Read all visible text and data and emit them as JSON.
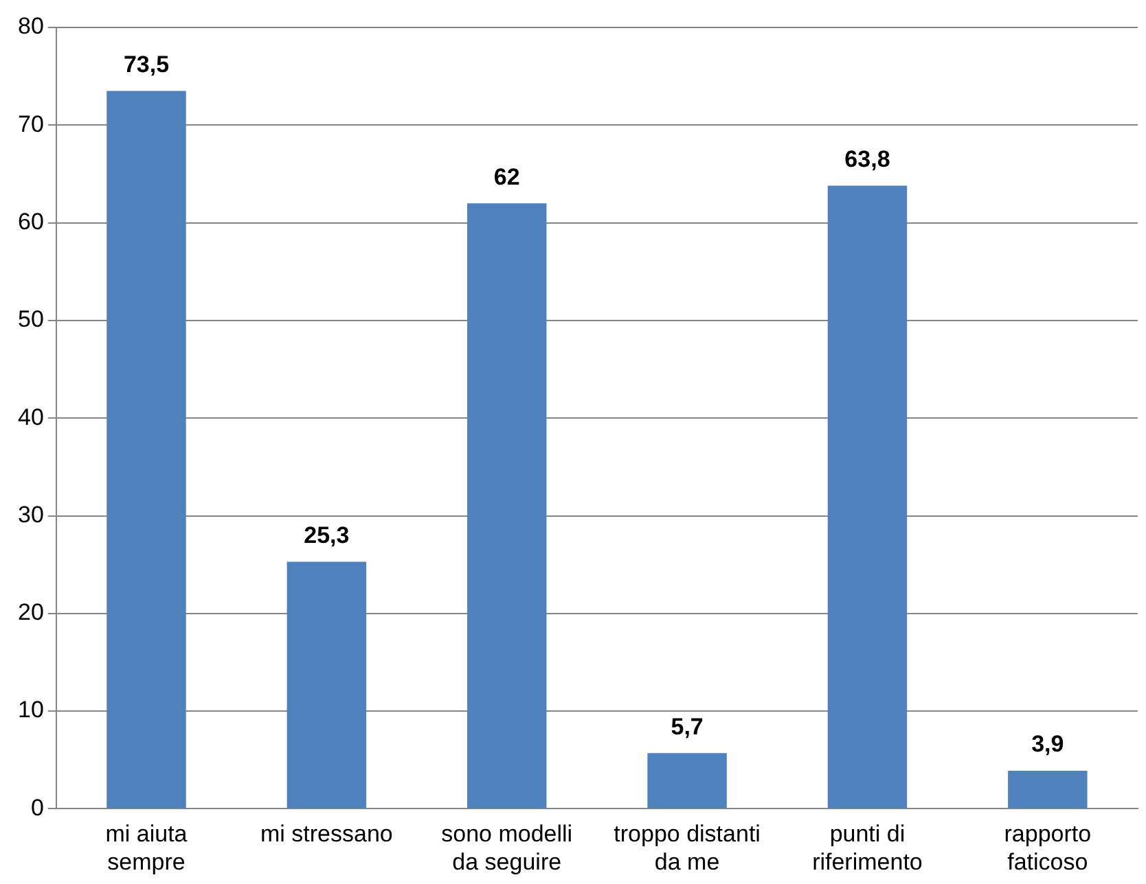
{
  "chart_data": {
    "type": "bar",
    "categories": [
      "mi aiuta sempre",
      "mi stressano",
      "sono modelli da seguire",
      "troppo distanti da me",
      "punti di riferimento",
      "rapporto faticoso"
    ],
    "values": [
      73.5,
      25.3,
      62,
      5.7,
      63.8,
      3.9
    ],
    "value_labels": [
      "73,5",
      "25,3",
      "62",
      "5,7",
      "63,8",
      "3,9"
    ],
    "color": "#4f81bd",
    "ylim": [
      0,
      80
    ],
    "yticks": [
      0,
      10,
      20,
      30,
      40,
      50,
      60,
      70,
      80
    ],
    "grid": "y",
    "legend": false
  }
}
